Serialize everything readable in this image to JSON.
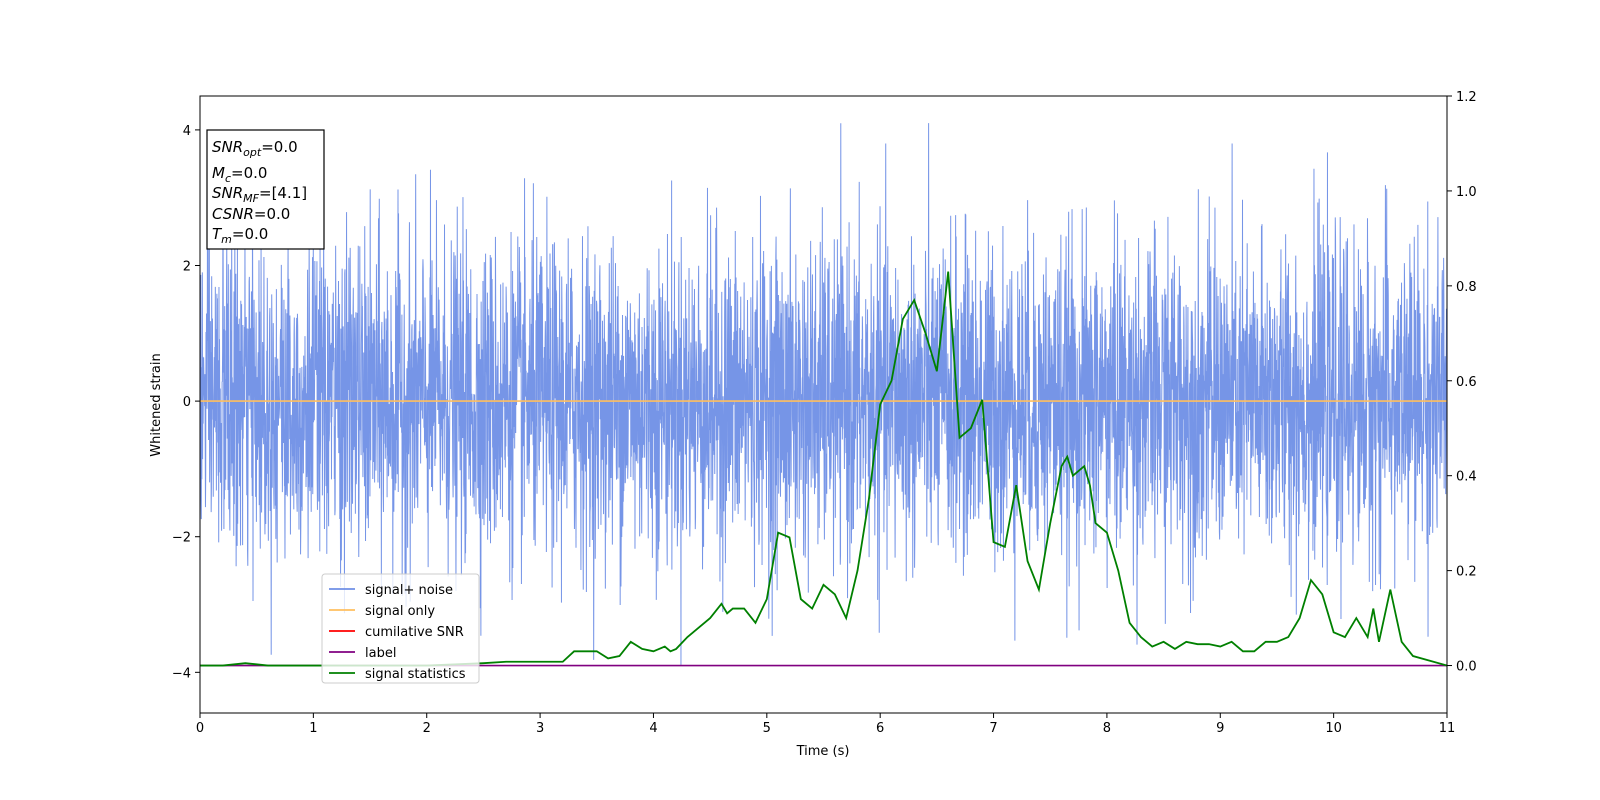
{
  "chart_data": {
    "type": "line",
    "xlabel": "Time (s)",
    "ylabel": "Whitened strain",
    "xlim": [
      0,
      11
    ],
    "ylim": [
      -4.6,
      4.5
    ],
    "ylim_right": [
      -0.1,
      1.2
    ],
    "xticks": [
      "0",
      "1",
      "2",
      "3",
      "4",
      "5",
      "6",
      "7",
      "8",
      "9",
      "10",
      "11"
    ],
    "yticks_left": [
      "−4",
      "−2",
      "0",
      "2",
      "4"
    ],
    "yticks_right": [
      "0.0",
      "0.2",
      "0.4",
      "0.6",
      "0.8",
      "1.0",
      "1.2"
    ],
    "info_box": {
      "snr_opt": {
        "base": "SNR",
        "sub": "opt",
        "value": "=0.0"
      },
      "mc": {
        "base": "M",
        "sub": "c",
        "value": "=0.0"
      },
      "snr_mf": {
        "base": "SNR",
        "sub": "MF",
        "value": "=[4.1]"
      },
      "csnr": {
        "base": "CSNR",
        "sub": "",
        "value": "=0.0"
      },
      "tm": {
        "base": "T",
        "sub": "m",
        "value": "=0.0"
      }
    },
    "legend": {
      "placement": "lower-left",
      "entries": [
        {
          "label": "signal+ noise",
          "color": "#6f8fe6"
        },
        {
          "label": "signal only",
          "color": "#ffbf5f"
        },
        {
          "label": "cumilative SNR",
          "color": "#ff0000"
        },
        {
          "label": "label",
          "color": "#800080"
        },
        {
          "label": "signal statistics",
          "color": "#008000"
        }
      ]
    },
    "series": [
      {
        "name": "signal+ noise",
        "axis": "left",
        "color": "#6f8fe6",
        "description": "Dense whitened noise, approx. range -4.1 to 4.1, centered at 0"
      },
      {
        "name": "signal only",
        "axis": "left",
        "color": "#ffbf5f",
        "x": [
          0,
          11
        ],
        "y": [
          0,
          0
        ]
      },
      {
        "name": "label",
        "axis": "right",
        "color": "#800080",
        "x": [
          0,
          11
        ],
        "y": [
          0,
          0
        ]
      },
      {
        "name": "signal statistics",
        "axis": "right",
        "color": "#008000",
        "x": [
          0,
          0.2,
          0.4,
          0.6,
          0.8,
          1.0,
          1.5,
          2.0,
          2.5,
          2.7,
          3.0,
          3.2,
          3.3,
          3.5,
          3.6,
          3.7,
          3.8,
          3.9,
          4.0,
          4.1,
          4.15,
          4.2,
          4.3,
          4.4,
          4.5,
          4.6,
          4.65,
          4.7,
          4.8,
          4.9,
          5.0,
          5.1,
          5.2,
          5.3,
          5.4,
          5.5,
          5.6,
          5.7,
          5.8,
          5.9,
          6.0,
          6.1,
          6.2,
          6.3,
          6.4,
          6.5,
          6.6,
          6.7,
          6.8,
          6.9,
          7.0,
          7.1,
          7.2,
          7.3,
          7.4,
          7.5,
          7.6,
          7.65,
          7.7,
          7.8,
          7.85,
          7.9,
          8.0,
          8.1,
          8.2,
          8.3,
          8.4,
          8.5,
          8.6,
          8.7,
          8.8,
          8.9,
          9.0,
          9.1,
          9.2,
          9.3,
          9.4,
          9.5,
          9.6,
          9.7,
          9.8,
          9.9,
          10.0,
          10.1,
          10.2,
          10.3,
          10.35,
          10.4,
          10.5,
          10.6,
          10.7,
          11.0
        ],
        "y": [
          0.0,
          0.0,
          0.005,
          0.0,
          0.0,
          0.0,
          0.0,
          0.0,
          0.005,
          0.008,
          0.008,
          0.008,
          0.03,
          0.03,
          0.015,
          0.02,
          0.05,
          0.035,
          0.03,
          0.04,
          0.03,
          0.035,
          0.06,
          0.08,
          0.1,
          0.13,
          0.11,
          0.12,
          0.12,
          0.09,
          0.14,
          0.28,
          0.27,
          0.14,
          0.12,
          0.17,
          0.15,
          0.1,
          0.2,
          0.35,
          0.55,
          0.6,
          0.73,
          0.77,
          0.7,
          0.62,
          0.83,
          0.48,
          0.5,
          0.56,
          0.26,
          0.25,
          0.38,
          0.22,
          0.16,
          0.3,
          0.42,
          0.44,
          0.4,
          0.42,
          0.38,
          0.3,
          0.28,
          0.2,
          0.09,
          0.06,
          0.04,
          0.05,
          0.035,
          0.05,
          0.045,
          0.045,
          0.04,
          0.05,
          0.03,
          0.03,
          0.05,
          0.05,
          0.06,
          0.1,
          0.18,
          0.15,
          0.07,
          0.06,
          0.1,
          0.06,
          0.12,
          0.05,
          0.16,
          0.05,
          0.02,
          0.0
        ]
      }
    ]
  }
}
